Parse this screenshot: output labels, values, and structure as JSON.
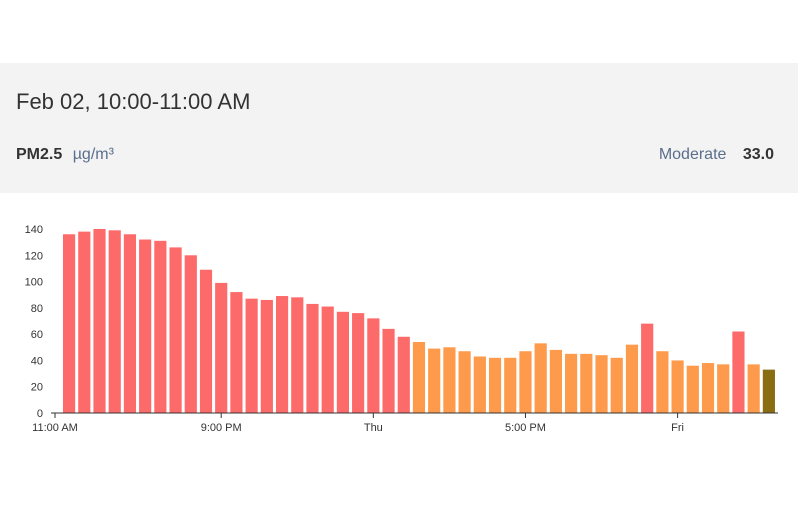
{
  "header": {
    "date_range": "Feb 02, 10:00-11:00 AM",
    "pollutant": "PM2.5",
    "unit": "µg/m³",
    "category": "Moderate",
    "value": "33.0"
  },
  "colors": {
    "unhealthy": "#fd6a6a",
    "usg": "#fd9a4b",
    "moderate_selected": "#8a6d12",
    "axis": "#333333",
    "text": "#333333",
    "label": "#5a6f8c"
  },
  "chart_data": {
    "type": "bar",
    "title": "",
    "xlabel": "",
    "ylabel": "",
    "ylim": [
      0,
      140
    ],
    "yticks": [
      0,
      20,
      40,
      60,
      80,
      100,
      120,
      140
    ],
    "xtick_labels": [
      {
        "index": 0,
        "label": "11:00 AM"
      },
      {
        "index": 10,
        "label": "9:00 PM"
      },
      {
        "index": 20,
        "label": "Thu"
      },
      {
        "index": 30,
        "label": "5:00 PM"
      },
      {
        "index": 40,
        "label": "Fri"
      }
    ],
    "values": [
      136,
      138,
      140,
      139,
      136,
      132,
      131,
      126,
      120,
      109,
      99,
      92,
      87,
      86,
      89,
      88,
      83,
      81,
      77,
      76,
      72,
      64,
      58,
      54,
      49,
      50,
      47,
      43,
      42,
      42,
      47,
      53,
      48,
      45,
      45,
      44,
      42,
      52,
      68,
      47,
      40,
      36,
      38,
      37,
      62,
      37,
      33
    ],
    "categories_per_bar": [
      "u",
      "u",
      "u",
      "u",
      "u",
      "u",
      "u",
      "u",
      "u",
      "u",
      "u",
      "u",
      "u",
      "u",
      "u",
      "u",
      "u",
      "u",
      "u",
      "u",
      "u",
      "u",
      "u",
      "g",
      "g",
      "g",
      "g",
      "g",
      "g",
      "g",
      "g",
      "g",
      "g",
      "g",
      "g",
      "g",
      "g",
      "g",
      "u",
      "g",
      "g",
      "g",
      "g",
      "g",
      "u",
      "g",
      "m"
    ]
  }
}
